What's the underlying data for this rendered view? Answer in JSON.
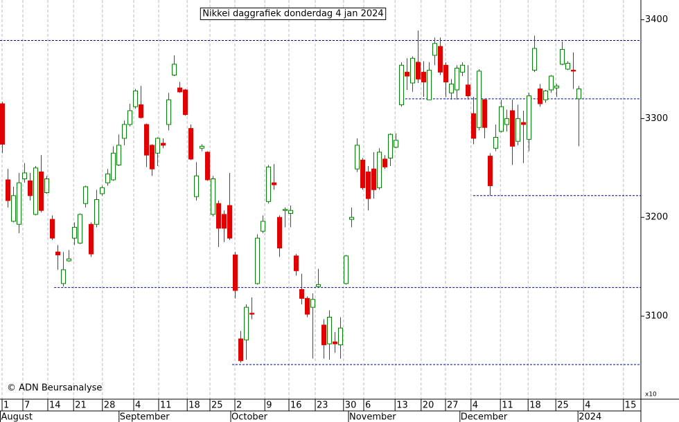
{
  "chart_data": {
    "type": "candlestick",
    "title": "Nikkei daggrafiek donderdag 4 jan 2024",
    "copyright": "© ADN Beursanalyse",
    "y_unit_label": "x10",
    "up_color": "#008000",
    "down_color": "#e00000",
    "level_color": "#00008b",
    "grid_color": "#bbbbbb",
    "ylim": [
      3016,
      3420
    ],
    "yticks": [
      3100,
      3200,
      3300,
      3400
    ],
    "xlim": [
      -0.375,
      115.25
    ],
    "xticks": [
      {
        "value": 0,
        "label": "1"
      },
      {
        "value": 3.75,
        "label": "7"
      },
      {
        "value": 8.25,
        "label": "14"
      },
      {
        "value": 12.9,
        "label": "21"
      },
      {
        "value": 18.1,
        "label": "28"
      },
      {
        "value": 23.75,
        "label": "4"
      },
      {
        "value": 28.25,
        "label": "11"
      },
      {
        "value": 33.4,
        "label": "18"
      },
      {
        "value": 37.5,
        "label": "25"
      },
      {
        "value": 42,
        "label": "2"
      },
      {
        "value": 47.4,
        "label": "9"
      },
      {
        "value": 51.75,
        "label": "16"
      },
      {
        "value": 56.5,
        "label": "23"
      },
      {
        "value": 61.6,
        "label": "30"
      },
      {
        "value": 65.25,
        "label": "6"
      },
      {
        "value": 70.9,
        "label": "13"
      },
      {
        "value": 75.6,
        "label": "20"
      },
      {
        "value": 80,
        "label": "27"
      },
      {
        "value": 84.6,
        "label": "4"
      },
      {
        "value": 89.9,
        "label": "11"
      },
      {
        "value": 94.9,
        "label": "18"
      },
      {
        "value": 99.9,
        "label": "25"
      },
      {
        "value": 104.9,
        "label": "4"
      },
      {
        "value": 112.1,
        "label": "15"
      }
    ],
    "month_ticks": [
      {
        "value": -0.375,
        "label": "August"
      },
      {
        "value": 21.1,
        "label": "September"
      },
      {
        "value": 41.25,
        "label": "October"
      },
      {
        "value": 62.5,
        "label": "November"
      },
      {
        "value": 82.6,
        "label": "December"
      },
      {
        "value": 103.9,
        "label": "2024"
      }
    ],
    "levels": [
      {
        "value": 3379,
        "from": -0.375
      },
      {
        "value": 3320,
        "from": 72.1
      },
      {
        "value": 3222,
        "from": 85
      },
      {
        "value": 3129,
        "from": 9.4
      },
      {
        "value": 3051,
        "from": 41.5
      }
    ],
    "categories": [
      null,
      null,
      null,
      null,
      null,
      null,
      null,
      null,
      null,
      null,
      null,
      null,
      null,
      null,
      null,
      null,
      null,
      null,
      null,
      null,
      null,
      null,
      null,
      null,
      null,
      null,
      null,
      null,
      null,
      null,
      null,
      null,
      null,
      null,
      null,
      null,
      null,
      null,
      null,
      null,
      null,
      null,
      null,
      null,
      null,
      null,
      null,
      null,
      null,
      null,
      null,
      null,
      null,
      null,
      null,
      null,
      null,
      null,
      null,
      null,
      null,
      null,
      null,
      null,
      null,
      null,
      null,
      null,
      null,
      null,
      null,
      null,
      null,
      null,
      null,
      null,
      null,
      null,
      null,
      null,
      null,
      null,
      null,
      null,
      null,
      null,
      null,
      null,
      null,
      null,
      null,
      null,
      null,
      null,
      null,
      null,
      null,
      null,
      null,
      null,
      null,
      null,
      null,
      null,
      null
    ],
    "open": [
      3315,
      3238,
      3196,
      3193,
      3239,
      3237,
      3203,
      3246,
      3225,
      3198,
      3165,
      3133,
      3156,
      3179,
      3174,
      3214,
      3193,
      3193,
      3224,
      3235,
      3238,
      3253,
      3280,
      3294,
      3312,
      3314,
      3294,
      3273,
      3265,
      3275,
      3294,
      3344,
      3331,
      3329,
      3290,
      3221,
      3270,
      3266,
      3203,
      3214,
      3203,
      3212,
      3162,
      3077,
      3076,
      3103,
      3133,
      3186,
      3216,
      3235,
      3200,
      3207,
      3204,
      3161,
      3127,
      3118,
      3109,
      3130,
      3091,
      3072,
      3074,
      3071,
      3133,
      3198,
      3249,
      3258,
      3246,
      3249,
      3230,
      3259,
      3260,
      3271,
      3314,
      3347,
      3336,
      3357,
      3347,
      3319,
      3364,
      3373,
      3354,
      3326,
      3329,
      3347,
      3334,
      3305,
      3291,
      3319,
      3262,
      3270,
      3287,
      3294,
      3308,
      3277,
      3296,
      3279,
      3349,
      3330,
      3319,
      3329,
      3331,
      3355,
      3350,
      3349,
      3320
    ],
    "high": [
      3317,
      3249,
      3231,
      3245,
      3255,
      3245,
      3252,
      3263,
      3242,
      3202,
      3172,
      3165,
      3167,
      3195,
      3204,
      3232,
      3195,
      3228,
      3232,
      3249,
      3272,
      3284,
      3298,
      3315,
      3330,
      3333,
      3295,
      3274,
      3281,
      3280,
      3326,
      3364,
      3337,
      3330,
      3294,
      3256,
      3274,
      3267,
      3242,
      3217,
      3207,
      3245,
      3165,
      3085,
      3112,
      3119,
      3183,
      3202,
      3253,
      3254,
      3202,
      3210,
      3212,
      3163,
      3143,
      3120,
      3123,
      3148,
      3097,
      3106,
      3084,
      3099,
      3162,
      3210,
      3280,
      3260,
      3252,
      3266,
      3270,
      3263,
      3285,
      3285,
      3357,
      3361,
      3363,
      3389,
      3358,
      3357,
      3382,
      3382,
      3357,
      3340,
      3354,
      3357,
      3354,
      3322,
      3350,
      3320,
      3265,
      3294,
      3319,
      3309,
      3319,
      3314,
      3308,
      3326,
      3384,
      3335,
      3329,
      3344,
      3335,
      3378,
      3358,
      3367,
      3333
    ],
    "low": [
      3265,
      3210,
      3195,
      3184,
      3235,
      3217,
      3202,
      3205,
      3224,
      3177,
      3147,
      3130,
      3155,
      3172,
      3173,
      3210,
      3160,
      3190,
      3222,
      3232,
      3237,
      3252,
      3273,
      3292,
      3310,
      3300,
      3251,
      3242,
      3252,
      3270,
      3288,
      3343,
      3326,
      3303,
      3258,
      3217,
      3267,
      3237,
      3201,
      3170,
      3175,
      3177,
      3118,
      3053,
      3056,
      3097,
      3132,
      3184,
      3214,
      3228,
      3160,
      3190,
      3190,
      3141,
      3112,
      3099,
      3057,
      3129,
      3057,
      3056,
      3063,
      3057,
      3132,
      3190,
      3246,
      3228,
      3207,
      3219,
      3228,
      3249,
      3252,
      3270,
      3312,
      3329,
      3327,
      3336,
      3322,
      3319,
      3354,
      3344,
      3322,
      3319,
      3319,
      3343,
      3319,
      3274,
      3288,
      3280,
      3222,
      3267,
      3286,
      3287,
      3253,
      3273,
      3255,
      3267,
      3347,
      3312,
      3316,
      3326,
      3322,
      3354,
      3349,
      3330,
      3272
    ],
    "close": [
      3274,
      3217,
      3222,
      3235,
      3245,
      3222,
      3250,
      3207,
      3239,
      3179,
      3162,
      3147,
      3158,
      3190,
      3203,
      3231,
      3163,
      3218,
      3230,
      3244,
      3265,
      3273,
      3294,
      3308,
      3328,
      3301,
      3263,
      3249,
      3280,
      3273,
      3319,
      3355,
      3327,
      3304,
      3259,
      3242,
      3272,
      3238,
      3239,
      3189,
      3189,
      3179,
      3126,
      3055,
      3109,
      3102,
      3179,
      3196,
      3251,
      3233,
      3169,
      3208,
      3207,
      3146,
      3118,
      3102,
      3117,
      3132,
      3071,
      3099,
      3072,
      3088,
      3161,
      3200,
      3273,
      3230,
      3219,
      3228,
      3266,
      3251,
      3284,
      3278,
      3354,
      3343,
      3361,
      3340,
      3337,
      3349,
      3376,
      3347,
      3337,
      3335,
      3351,
      3354,
      3323,
      3280,
      3348,
      3291,
      3232,
      3281,
      3312,
      3300,
      3272,
      3300,
      3294,
      3323,
      3371,
      3315,
      3328,
      3343,
      3333,
      3370,
      3356,
      3348,
      3330
    ]
  }
}
